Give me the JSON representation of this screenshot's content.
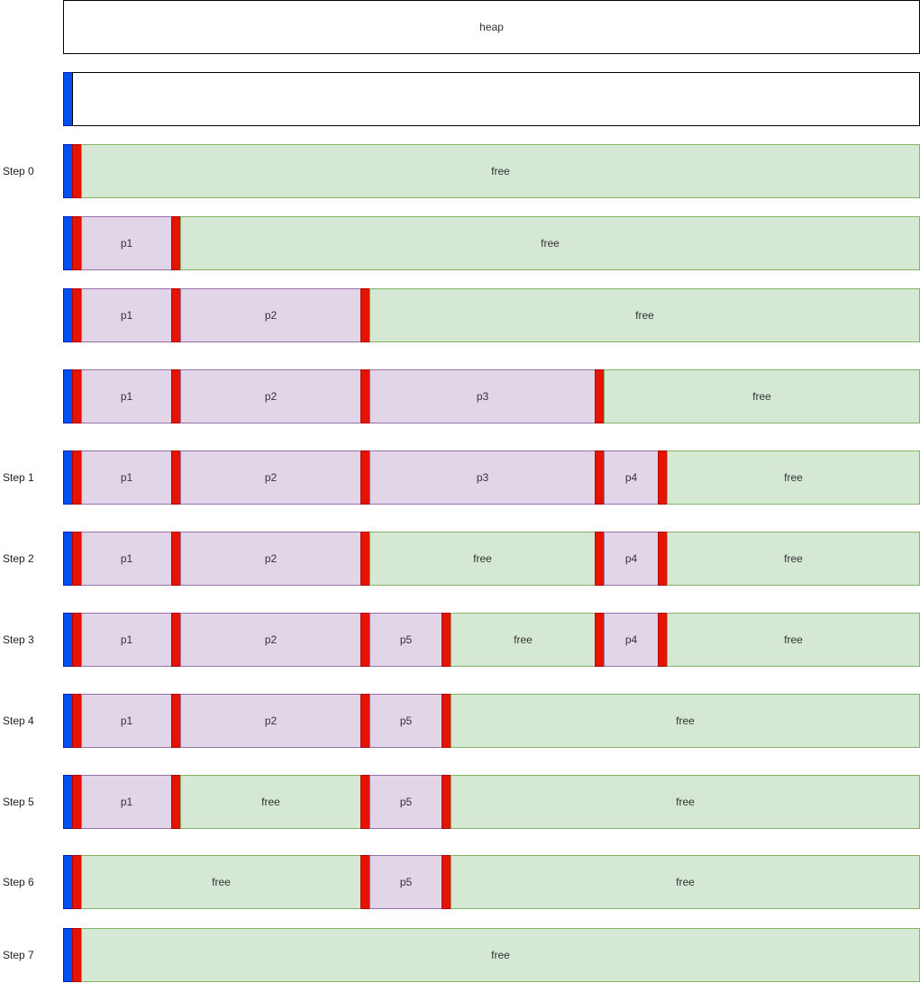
{
  "colors": {
    "header_block": "#0050ef",
    "boundary_tag": "#e51400",
    "free_fill": "#d5e8d4",
    "free_border": "#82b366",
    "allocated_fill": "#e1d5e7",
    "allocated_border": "#9673a6"
  },
  "rows": [
    {
      "label": "",
      "segments": [
        {
          "kind": "plain",
          "from": 0,
          "to": 950,
          "text": "heap"
        }
      ]
    },
    {
      "label": "",
      "segments": [
        {
          "kind": "header",
          "from": 0,
          "to": 10,
          "text": ""
        },
        {
          "kind": "plain",
          "from": 10,
          "to": 950,
          "text": ""
        }
      ]
    },
    {
      "label": "Step 0",
      "segments": [
        {
          "kind": "header",
          "from": 0,
          "to": 10,
          "text": ""
        },
        {
          "kind": "boundary",
          "from": 10,
          "to": 20,
          "text": ""
        },
        {
          "kind": "free",
          "from": 20,
          "to": 950,
          "text": "free"
        }
      ]
    },
    {
      "label": "",
      "segments": [
        {
          "kind": "header",
          "from": 0,
          "to": 10,
          "text": ""
        },
        {
          "kind": "boundary",
          "from": 10,
          "to": 20,
          "text": ""
        },
        {
          "kind": "alloc",
          "from": 20,
          "to": 120,
          "text": "p1"
        },
        {
          "kind": "boundary",
          "from": 120,
          "to": 130,
          "text": ""
        },
        {
          "kind": "free",
          "from": 130,
          "to": 950,
          "text": "free"
        }
      ]
    },
    {
      "label": "",
      "segments": [
        {
          "kind": "header",
          "from": 0,
          "to": 10,
          "text": ""
        },
        {
          "kind": "boundary",
          "from": 10,
          "to": 20,
          "text": ""
        },
        {
          "kind": "alloc",
          "from": 20,
          "to": 120,
          "text": "p1"
        },
        {
          "kind": "boundary",
          "from": 120,
          "to": 130,
          "text": ""
        },
        {
          "kind": "alloc",
          "from": 130,
          "to": 330,
          "text": "p2"
        },
        {
          "kind": "boundary",
          "from": 330,
          "to": 340,
          "text": ""
        },
        {
          "kind": "free",
          "from": 340,
          "to": 950,
          "text": "free"
        }
      ]
    },
    {
      "label": "",
      "segments": [
        {
          "kind": "header",
          "from": 0,
          "to": 10,
          "text": ""
        },
        {
          "kind": "boundary",
          "from": 10,
          "to": 20,
          "text": ""
        },
        {
          "kind": "alloc",
          "from": 20,
          "to": 120,
          "text": "p1"
        },
        {
          "kind": "boundary",
          "from": 120,
          "to": 130,
          "text": ""
        },
        {
          "kind": "alloc",
          "from": 130,
          "to": 330,
          "text": "p2"
        },
        {
          "kind": "boundary",
          "from": 330,
          "to": 340,
          "text": ""
        },
        {
          "kind": "alloc",
          "from": 340,
          "to": 590,
          "text": "p3"
        },
        {
          "kind": "boundary",
          "from": 590,
          "to": 600,
          "text": ""
        },
        {
          "kind": "free",
          "from": 600,
          "to": 950,
          "text": "free"
        }
      ]
    },
    {
      "label": "Step 1",
      "segments": [
        {
          "kind": "header",
          "from": 0,
          "to": 10,
          "text": ""
        },
        {
          "kind": "boundary",
          "from": 10,
          "to": 20,
          "text": ""
        },
        {
          "kind": "alloc",
          "from": 20,
          "to": 120,
          "text": "p1"
        },
        {
          "kind": "boundary",
          "from": 120,
          "to": 130,
          "text": ""
        },
        {
          "kind": "alloc",
          "from": 130,
          "to": 330,
          "text": "p2"
        },
        {
          "kind": "boundary",
          "from": 330,
          "to": 340,
          "text": ""
        },
        {
          "kind": "alloc",
          "from": 340,
          "to": 590,
          "text": "p3"
        },
        {
          "kind": "boundary",
          "from": 590,
          "to": 600,
          "text": ""
        },
        {
          "kind": "alloc",
          "from": 600,
          "to": 660,
          "text": "p4"
        },
        {
          "kind": "boundary",
          "from": 660,
          "to": 670,
          "text": ""
        },
        {
          "kind": "free",
          "from": 670,
          "to": 950,
          "text": "free"
        }
      ]
    },
    {
      "label": "Step 2",
      "segments": [
        {
          "kind": "header",
          "from": 0,
          "to": 10,
          "text": ""
        },
        {
          "kind": "boundary",
          "from": 10,
          "to": 20,
          "text": ""
        },
        {
          "kind": "alloc",
          "from": 20,
          "to": 120,
          "text": "p1"
        },
        {
          "kind": "boundary",
          "from": 120,
          "to": 130,
          "text": ""
        },
        {
          "kind": "alloc",
          "from": 130,
          "to": 330,
          "text": "p2"
        },
        {
          "kind": "boundary",
          "from": 330,
          "to": 340,
          "text": ""
        },
        {
          "kind": "free",
          "from": 340,
          "to": 590,
          "text": "free"
        },
        {
          "kind": "boundary",
          "from": 590,
          "to": 600,
          "text": ""
        },
        {
          "kind": "alloc",
          "from": 600,
          "to": 660,
          "text": "p4"
        },
        {
          "kind": "boundary",
          "from": 660,
          "to": 670,
          "text": ""
        },
        {
          "kind": "free",
          "from": 670,
          "to": 950,
          "text": "free"
        }
      ]
    },
    {
      "label": "Step 3",
      "segments": [
        {
          "kind": "header",
          "from": 0,
          "to": 10,
          "text": ""
        },
        {
          "kind": "boundary",
          "from": 10,
          "to": 20,
          "text": ""
        },
        {
          "kind": "alloc",
          "from": 20,
          "to": 120,
          "text": "p1"
        },
        {
          "kind": "boundary",
          "from": 120,
          "to": 130,
          "text": ""
        },
        {
          "kind": "alloc",
          "from": 130,
          "to": 330,
          "text": "p2"
        },
        {
          "kind": "boundary",
          "from": 330,
          "to": 340,
          "text": ""
        },
        {
          "kind": "alloc",
          "from": 340,
          "to": 420,
          "text": "p5"
        },
        {
          "kind": "boundary",
          "from": 420,
          "to": 430,
          "text": ""
        },
        {
          "kind": "free",
          "from": 430,
          "to": 590,
          "text": "free"
        },
        {
          "kind": "boundary",
          "from": 590,
          "to": 600,
          "text": ""
        },
        {
          "kind": "alloc",
          "from": 600,
          "to": 660,
          "text": "p4"
        },
        {
          "kind": "boundary",
          "from": 660,
          "to": 670,
          "text": ""
        },
        {
          "kind": "free",
          "from": 670,
          "to": 950,
          "text": "free"
        }
      ]
    },
    {
      "label": "Step 4",
      "segments": [
        {
          "kind": "header",
          "from": 0,
          "to": 10,
          "text": ""
        },
        {
          "kind": "boundary",
          "from": 10,
          "to": 20,
          "text": ""
        },
        {
          "kind": "alloc",
          "from": 20,
          "to": 120,
          "text": "p1"
        },
        {
          "kind": "boundary",
          "from": 120,
          "to": 130,
          "text": ""
        },
        {
          "kind": "alloc",
          "from": 130,
          "to": 330,
          "text": "p2"
        },
        {
          "kind": "boundary",
          "from": 330,
          "to": 340,
          "text": ""
        },
        {
          "kind": "alloc",
          "from": 340,
          "to": 420,
          "text": "p5"
        },
        {
          "kind": "boundary",
          "from": 420,
          "to": 430,
          "text": ""
        },
        {
          "kind": "free",
          "from": 430,
          "to": 950,
          "text": "free"
        }
      ]
    },
    {
      "label": "Step 5",
      "segments": [
        {
          "kind": "header",
          "from": 0,
          "to": 10,
          "text": ""
        },
        {
          "kind": "boundary",
          "from": 10,
          "to": 20,
          "text": ""
        },
        {
          "kind": "alloc",
          "from": 20,
          "to": 120,
          "text": "p1"
        },
        {
          "kind": "boundary",
          "from": 120,
          "to": 130,
          "text": ""
        },
        {
          "kind": "free",
          "from": 130,
          "to": 330,
          "text": "free"
        },
        {
          "kind": "boundary",
          "from": 330,
          "to": 340,
          "text": ""
        },
        {
          "kind": "alloc",
          "from": 340,
          "to": 420,
          "text": "p5"
        },
        {
          "kind": "boundary",
          "from": 420,
          "to": 430,
          "text": ""
        },
        {
          "kind": "free",
          "from": 430,
          "to": 950,
          "text": "free"
        }
      ]
    },
    {
      "label": "Step 6",
      "segments": [
        {
          "kind": "header",
          "from": 0,
          "to": 10,
          "text": ""
        },
        {
          "kind": "boundary",
          "from": 10,
          "to": 20,
          "text": ""
        },
        {
          "kind": "free",
          "from": 20,
          "to": 330,
          "text": "free"
        },
        {
          "kind": "boundary",
          "from": 330,
          "to": 340,
          "text": ""
        },
        {
          "kind": "alloc",
          "from": 340,
          "to": 420,
          "text": "p5"
        },
        {
          "kind": "boundary",
          "from": 420,
          "to": 430,
          "text": ""
        },
        {
          "kind": "free",
          "from": 430,
          "to": 950,
          "text": "free"
        }
      ]
    },
    {
      "label": "Step 7",
      "segments": [
        {
          "kind": "header",
          "from": 0,
          "to": 10,
          "text": ""
        },
        {
          "kind": "boundary",
          "from": 10,
          "to": 20,
          "text": ""
        },
        {
          "kind": "free",
          "from": 20,
          "to": 950,
          "text": "free"
        }
      ]
    }
  ]
}
